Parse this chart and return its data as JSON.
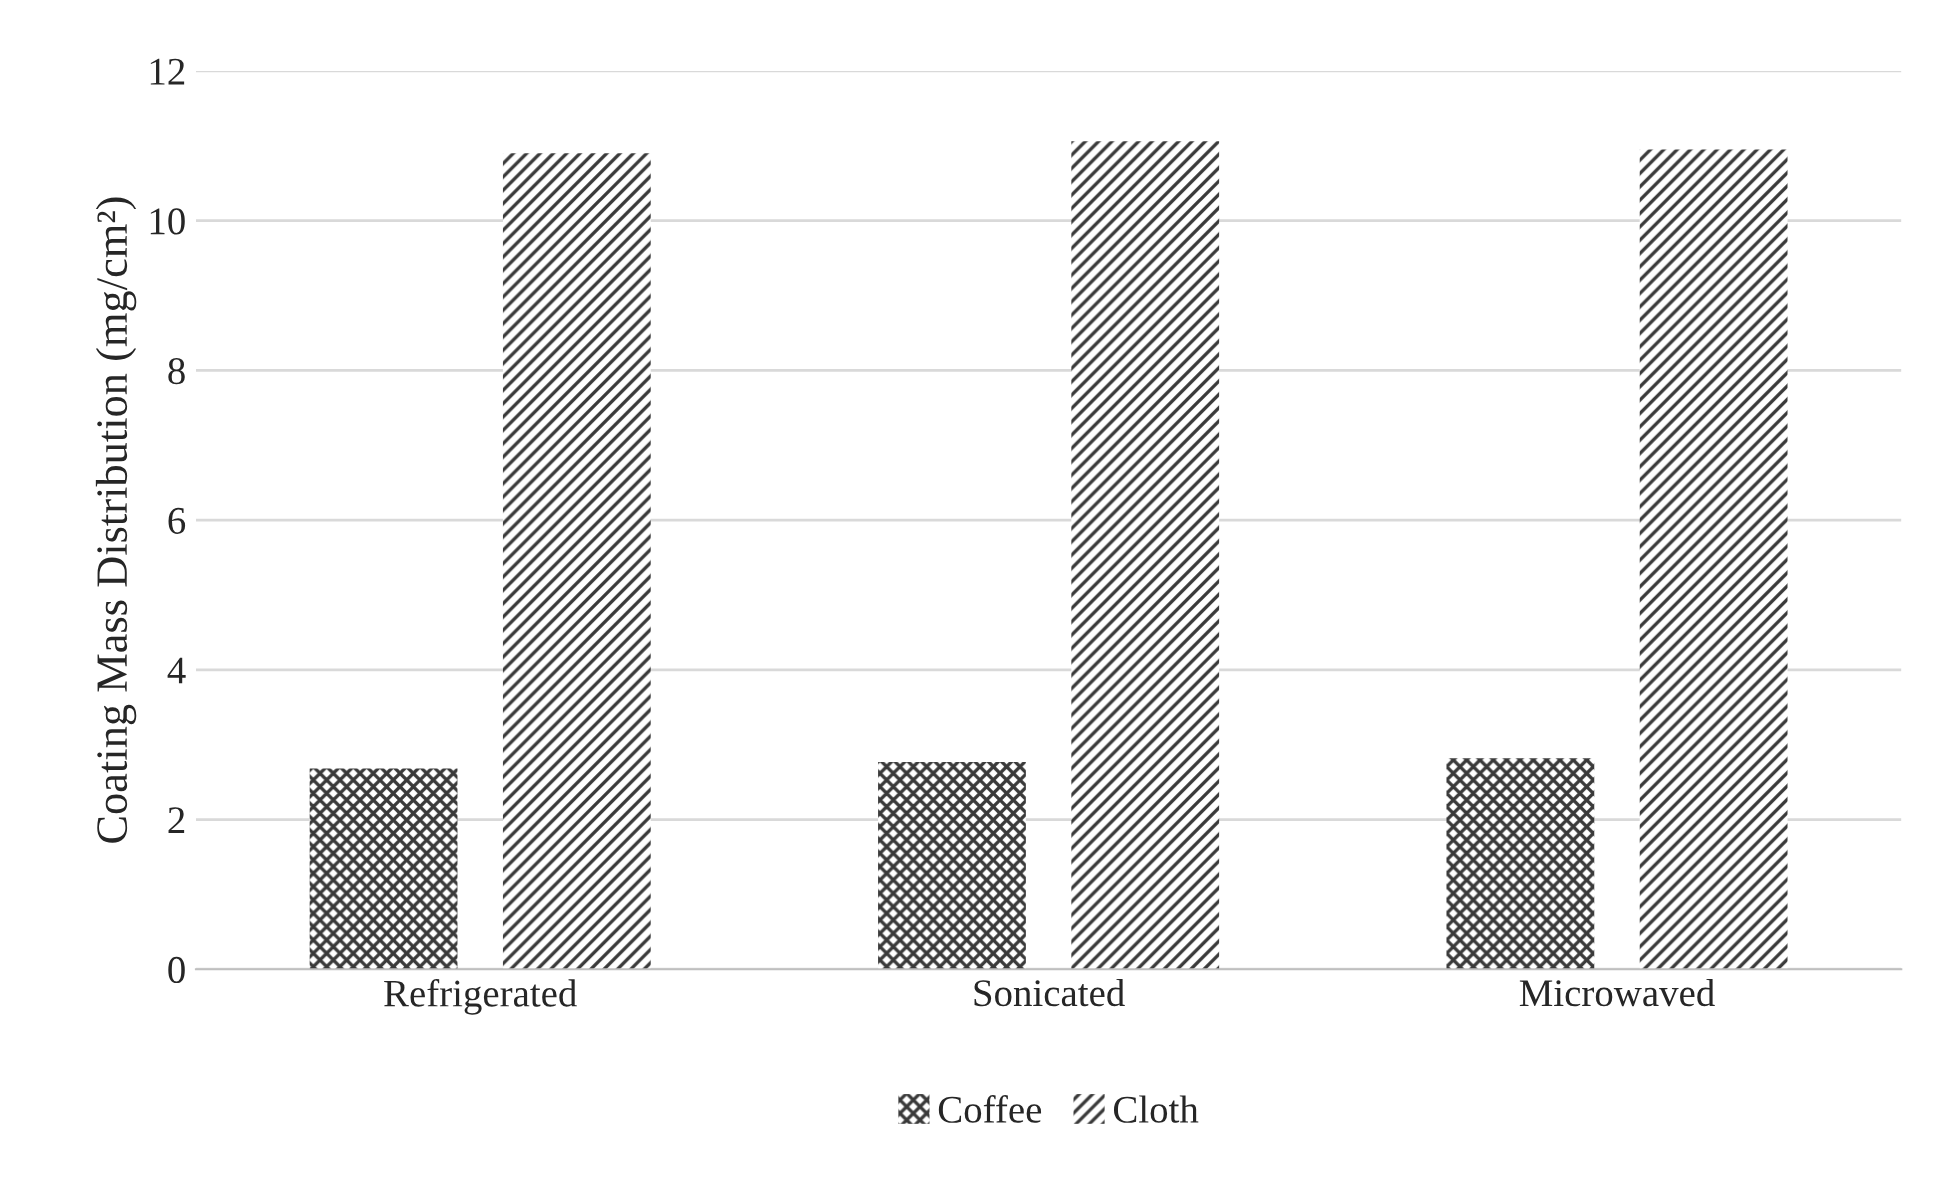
{
  "chart_data": {
    "type": "bar",
    "ylabel": "Coating Mass Distribution (mg/cm²)",
    "categories": [
      "Refrigerated",
      "Sonicated",
      "Microwaved"
    ],
    "series": [
      {
        "name": "Coffee",
        "color": "#3a3a3a",
        "values": [
          2.68,
          2.77,
          2.82
        ]
      },
      {
        "name": "Cloth",
        "color": "#3a3a3a",
        "values": [
          10.9,
          11.06,
          10.95
        ]
      }
    ],
    "ylim": [
      0,
      12
    ],
    "yticks": [
      0,
      2,
      4,
      6,
      8,
      10,
      12
    ],
    "grid": "y",
    "legend": "bottom"
  }
}
